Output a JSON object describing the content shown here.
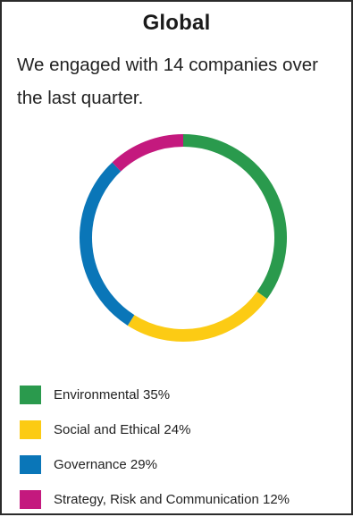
{
  "title": "Global",
  "subtitle": "We engaged with 14 companies over the last quarter.",
  "chart_data": {
    "type": "pie",
    "donut": true,
    "title": "",
    "slices": [
      {
        "name": "Environmental",
        "value": 35,
        "label": "Environmental 35%",
        "color": "#2a9a4d"
      },
      {
        "name": "Social and Ethical",
        "value": 24,
        "label": "Social and Ethical 24%",
        "color": "#fccb14"
      },
      {
        "name": "Governance",
        "value": 29,
        "label": "Governance 29%",
        "color": "#0a76b8"
      },
      {
        "name": "Strategy, Risk and Communication",
        "value": 12,
        "label": "Strategy, Risk and Communication 12%",
        "color": "#c4197e"
      }
    ],
    "start_position": "top",
    "direction": "clockwise",
    "legend_position": "bottom"
  }
}
